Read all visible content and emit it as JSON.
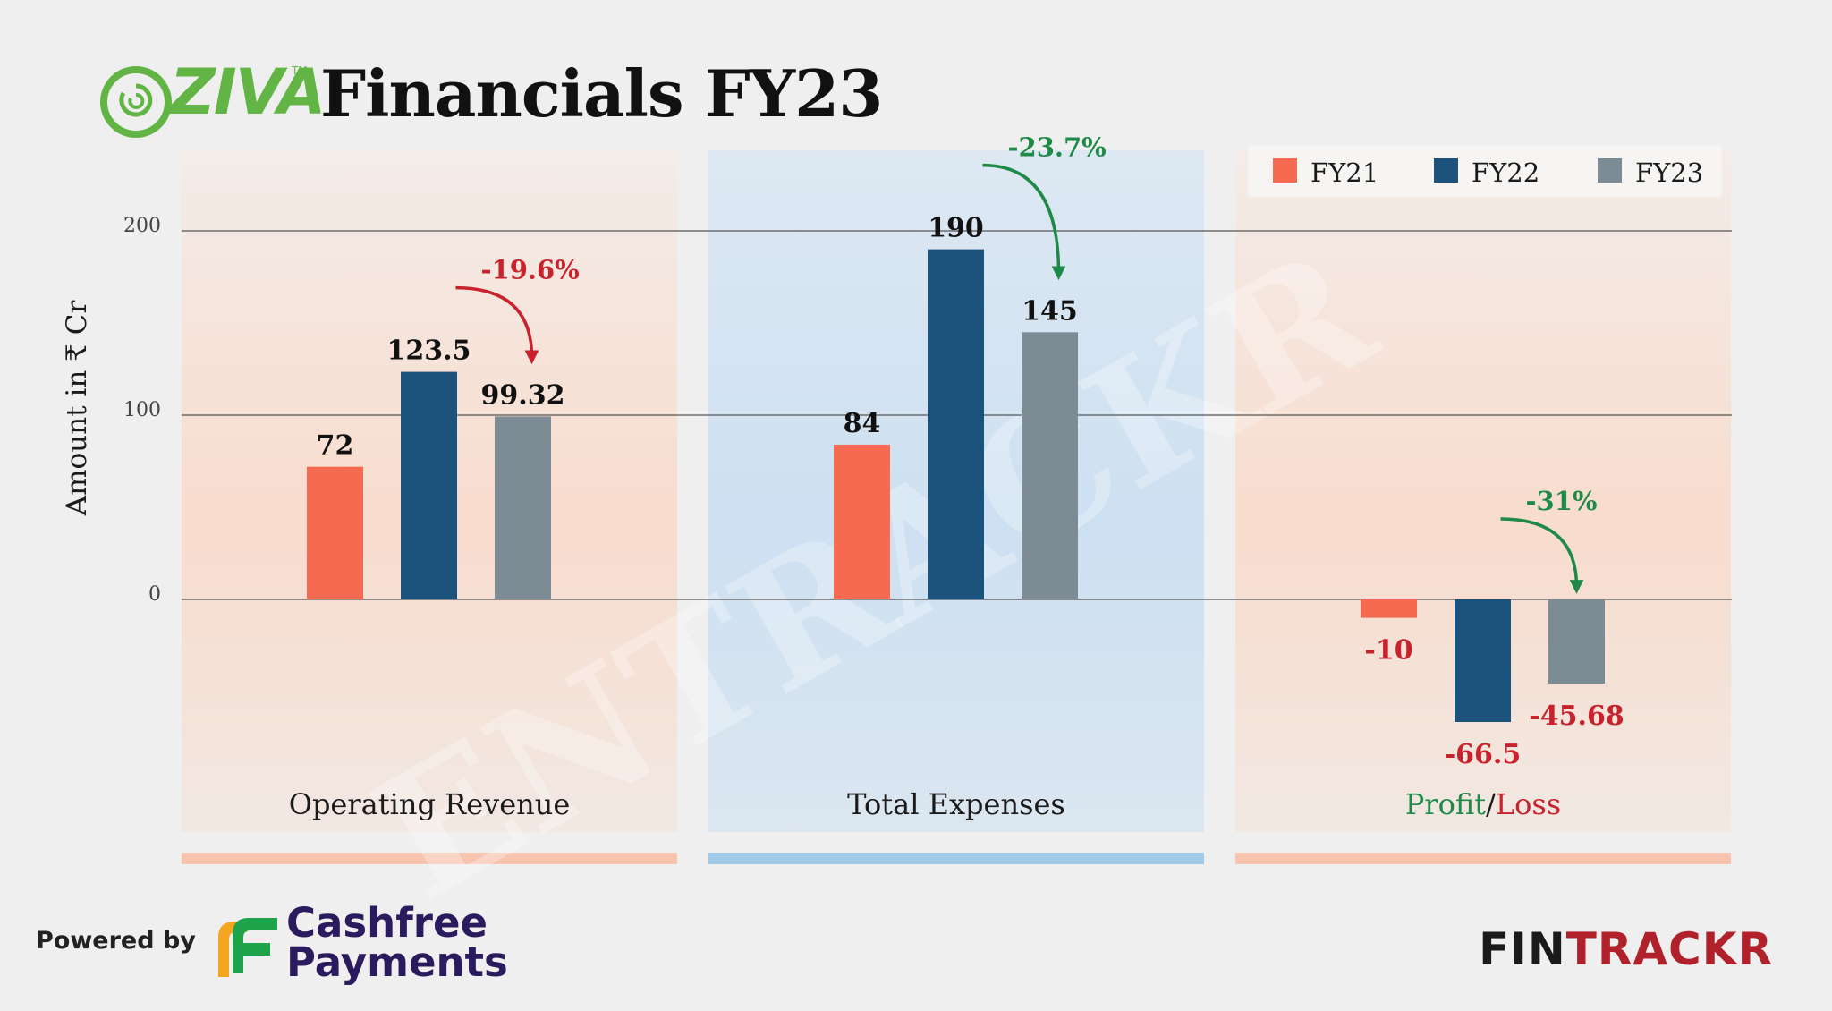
{
  "header": {
    "logo_text": "OZIVA",
    "title": "Financials FY23"
  },
  "footer": {
    "powered_by": "Powered by",
    "sponsor_line1": "Cashfree",
    "sponsor_line2": "Payments",
    "brand_part1": "FIN",
    "brand_part2": "TRACKR"
  },
  "watermark": "ENTRACKR",
  "colors": {
    "fy21": "#f56a51",
    "fy22": "#1b537c",
    "fy23": "#7d8b94",
    "positive": "#1f8a48",
    "negative": "#c8222c",
    "panel_warm": "#f8dccd",
    "panel_cool": "#cde0f1",
    "bar_warm": "#f8c4ad",
    "bar_cool": "#9fcbe8"
  },
  "chart_data": {
    "type": "bar",
    "ylabel": "Amount in ₹ Cr",
    "ylim": [
      -130,
      240
    ],
    "yticks": [
      0,
      100,
      200
    ],
    "grid": true,
    "legend_position": "top-right",
    "series_names": [
      "FY21",
      "FY22",
      "FY23"
    ],
    "categories": [
      {
        "name_parts": [
          {
            "text": "Operating Revenue",
            "color": "dark"
          }
        ],
        "values": [
          72,
          123.5,
          99.32
        ],
        "labels": [
          "72",
          "123.5",
          "99.32"
        ],
        "change": {
          "text": "-19.6%",
          "color": "negative"
        },
        "panel": "warm"
      },
      {
        "name_parts": [
          {
            "text": "Total Expenses",
            "color": "dark"
          }
        ],
        "values": [
          84,
          190,
          145
        ],
        "labels": [
          "84",
          "190",
          "145"
        ],
        "change": {
          "text": "-23.7%",
          "color": "positive"
        },
        "panel": "cool"
      },
      {
        "name_parts": [
          {
            "text": "Profit",
            "color": "positive"
          },
          {
            "text": "/",
            "color": "dark"
          },
          {
            "text": "Loss",
            "color": "negative"
          }
        ],
        "values": [
          -10,
          -66.5,
          -45.68
        ],
        "labels": [
          "-10",
          "-66.5",
          "-45.68"
        ],
        "change": {
          "text": "-31%",
          "color": "positive"
        },
        "panel": "warm"
      }
    ]
  }
}
